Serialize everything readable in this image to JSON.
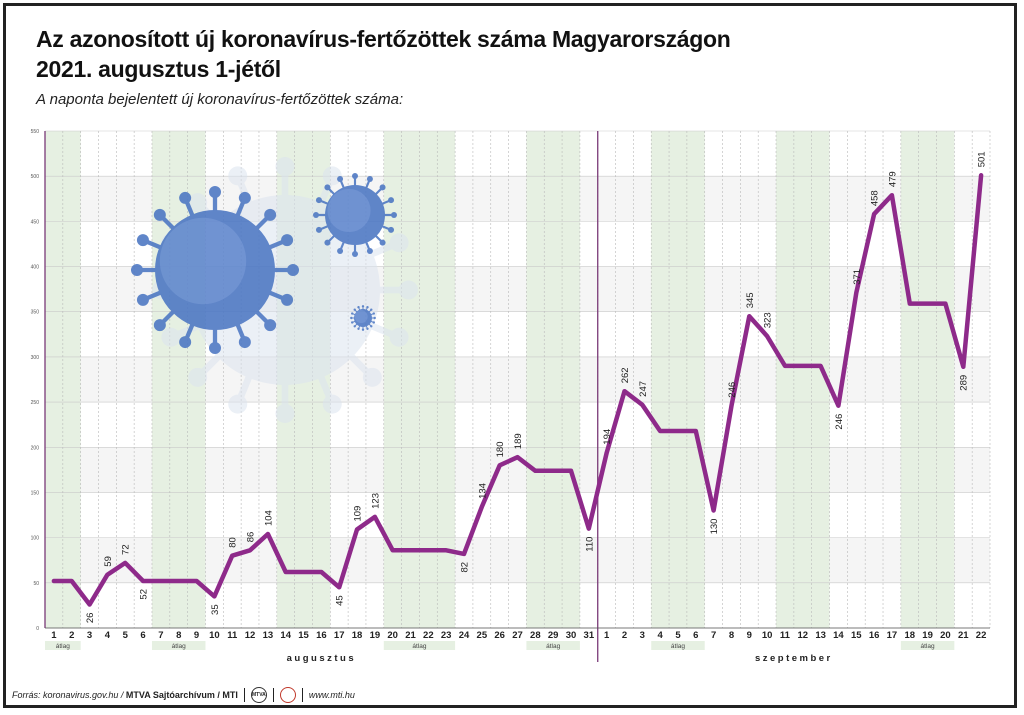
{
  "title_line1": "Az azonosított új koronavírus-fertőzöttek száma Magyarországon",
  "title_line2": "2021. augusztus 1-jétől",
  "subtitle": "A naponta bejelentett új koronavírus-fertőzöttek száma:",
  "footer": {
    "source_prefix": "Forrás: koronavirus.gov.hu / ",
    "source_bold": "MTVA Sajtóarchívum / MTI",
    "logo_mtva": "MTVA",
    "website": "www.mti.hu"
  },
  "colors": {
    "line": "#8e2a8a",
    "weekend_band": "#e6f0e2",
    "month_divider": "#7a3a78",
    "grid": "#c9c9c9"
  },
  "chart_data": {
    "type": "line",
    "title": "Az azonosított új koronavírus-fertőzöttek száma Magyarországon 2021. augusztus 1-jétől",
    "subtitle": "A naponta bejelentett új koronavírus-fertőzöttek száma:",
    "ylim": [
      0,
      550
    ],
    "yticks": [
      0,
      50,
      100,
      150,
      200,
      250,
      300,
      350,
      400,
      450,
      500,
      550
    ],
    "grid": true,
    "x_labels": [
      "1",
      "2",
      "3",
      "4",
      "5",
      "6",
      "7",
      "8",
      "9",
      "10",
      "11",
      "12",
      "13",
      "14",
      "15",
      "16",
      "17",
      "18",
      "19",
      "20",
      "21",
      "22",
      "23",
      "24",
      "25",
      "26",
      "27",
      "28",
      "29",
      "30",
      "31",
      "1",
      "2",
      "3",
      "4",
      "5",
      "6",
      "7",
      "8",
      "9",
      "10",
      "11",
      "12",
      "13",
      "14",
      "15",
      "16",
      "17",
      "18",
      "19",
      "20",
      "21",
      "22"
    ],
    "months": [
      {
        "label": "augusztus",
        "start": 0,
        "end": 30
      },
      {
        "label": "szeptember",
        "start": 31,
        "end": 52
      }
    ],
    "weekend_groups": [
      {
        "days": [
          0,
          1
        ],
        "label": "átlag"
      },
      {
        "days": [
          6,
          7,
          8
        ],
        "label": "átlag"
      },
      {
        "days": [
          13,
          14,
          15
        ],
        "label": ""
      },
      {
        "days": [
          19,
          20,
          21,
          22
        ],
        "label": "átlag"
      },
      {
        "days": [
          27,
          28,
          29
        ],
        "label": "átlag"
      },
      {
        "days": [
          34,
          35,
          36
        ],
        "label": "átlag"
      },
      {
        "days": [
          41,
          42,
          43
        ],
        "label": ""
      },
      {
        "days": [
          48,
          49,
          50
        ],
        "label": "átlag"
      }
    ],
    "values": [
      52,
      52,
      26,
      59,
      72,
      52,
      52,
      52,
      52,
      35,
      80,
      86,
      104,
      62,
      62,
      62,
      45,
      109,
      123,
      86,
      86,
      86,
      86,
      82,
      134,
      180,
      189,
      174,
      174,
      174,
      110,
      194,
      262,
      247,
      218,
      218,
      218,
      130,
      246,
      345,
      323,
      290,
      290,
      290,
      246,
      371,
      458,
      479,
      359,
      359,
      359,
      289,
      501
    ],
    "data_labels": [
      "",
      "",
      "26",
      "59",
      "72",
      "52",
      "",
      "",
      "",
      "35",
      "80",
      "86",
      "104",
      "",
      "",
      "",
      "45",
      "109",
      "123",
      "",
      "",
      "",
      "",
      "82",
      "134",
      "180",
      "189",
      "",
      "",
      "",
      "110",
      "194",
      "262",
      "247",
      "",
      "",
      "",
      "130",
      "246",
      "345",
      "323",
      "",
      "",
      "",
      "246",
      "371",
      "458",
      "479",
      "",
      "",
      "",
      "289",
      "501"
    ]
  }
}
